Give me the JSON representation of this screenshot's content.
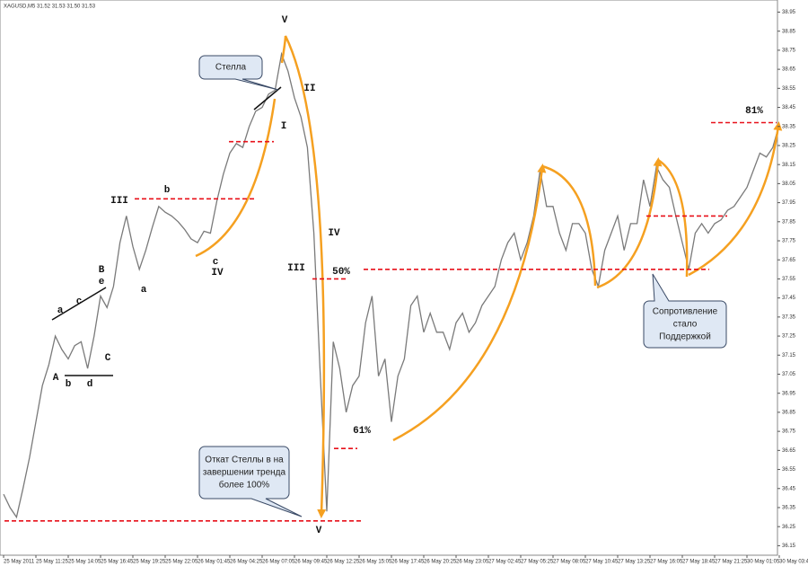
{
  "chart_data": {
    "type": "line",
    "title": "XAGUSD,M5  31.52 31.53 31.50 31.53",
    "categories": [
      "25 May 2011",
      null,
      null,
      null,
      null,
      "25 May 11:25",
      null,
      null,
      null,
      null,
      "25 May 14:05",
      null,
      null,
      null,
      null,
      "25 May 16:45",
      null,
      null,
      null,
      null,
      "25 May 19:25",
      null,
      null,
      null,
      null,
      "25 May 22:05",
      null,
      null,
      null,
      null,
      "26 May 01:45",
      null,
      null,
      null,
      null,
      "26 May 04:25",
      null,
      null,
      null,
      null,
      "26 May 07:05",
      null,
      null,
      null,
      null,
      "26 May 09:45",
      null,
      null,
      null,
      null,
      "26 May 12:25",
      null,
      null,
      null,
      null,
      "26 May 15:05",
      null,
      null,
      null,
      null,
      "26 May 17:45",
      null,
      null,
      null,
      null,
      "26 May 20:25",
      null,
      null,
      null,
      null,
      "26 May 23:05",
      null,
      null,
      null,
      null,
      "27 May 02:45",
      null,
      null,
      null,
      null,
      "27 May 05:25",
      null,
      null,
      null,
      null,
      "27 May 08:05",
      null,
      null,
      null,
      null,
      "27 May 10:45",
      null,
      null,
      null,
      null,
      "27 May 13:25",
      null,
      null,
      null,
      null,
      "27 May 16:05",
      null,
      null,
      null,
      null,
      "27 May 18:45",
      null,
      null,
      null,
      null,
      "27 May 21:25",
      null,
      null,
      null,
      null,
      "30 May 01:05",
      null,
      null,
      null,
      null,
      "30 May 03:45"
    ],
    "values": [
      36.42,
      36.35,
      36.3,
      36.45,
      36.61,
      36.8,
      36.99,
      37.1,
      37.25,
      37.18,
      37.13,
      37.2,
      37.22,
      37.08,
      37.25,
      37.46,
      37.4,
      37.51,
      37.74,
      37.88,
      37.72,
      37.6,
      37.7,
      37.82,
      37.93,
      37.9,
      37.88,
      37.85,
      37.81,
      37.76,
      37.74,
      37.8,
      37.79,
      37.96,
      38.1,
      38.21,
      38.26,
      38.24,
      38.35,
      38.43,
      38.45,
      38.52,
      38.54,
      38.73,
      38.64,
      38.5,
      38.4,
      38.24,
      37.79,
      37.04,
      36.33,
      37.22,
      37.08,
      36.85,
      36.99,
      37.04,
      37.32,
      37.46,
      37.04,
      37.13,
      36.8,
      37.04,
      37.13,
      37.41,
      37.46,
      37.27,
      37.37,
      37.27,
      37.27,
      37.18,
      37.32,
      37.37,
      37.27,
      37.32,
      37.41,
      37.46,
      37.51,
      37.65,
      37.74,
      37.79,
      37.65,
      37.74,
      37.88,
      38.12,
      37.93,
      37.93,
      37.79,
      37.7,
      37.84,
      37.84,
      37.79,
      37.6,
      37.51,
      37.7,
      37.79,
      37.88,
      37.7,
      37.84,
      37.84,
      38.07,
      37.93,
      38.14,
      38.07,
      38.03,
      37.88,
      37.74,
      37.6,
      37.79,
      37.84,
      37.79,
      37.84,
      37.86,
      37.91,
      37.93,
      37.98,
      38.03,
      38.12,
      38.21,
      38.19,
      38.24,
      38.36
    ],
    "color": "#7a7a7a",
    "ylim": [
      36.1,
      38.99
    ],
    "yticks": [
      36.15,
      36.25,
      36.35,
      36.45,
      36.55,
      36.65,
      36.75,
      36.85,
      36.95,
      37.05,
      37.15,
      37.25,
      37.35,
      37.45,
      37.55,
      37.65,
      37.75,
      37.85,
      37.95,
      38.05,
      38.15,
      38.25,
      38.35,
      38.45,
      38.55,
      38.65,
      38.75,
      38.85,
      38.95
    ],
    "levels": {
      "color": "#e8101a",
      "values": [
        38.27,
        37.97,
        37.55,
        37.6,
        36.66,
        36.28,
        37.88,
        38.37
      ]
    },
    "annotations": [
      "V",
      "II",
      "I",
      "III",
      "b",
      "c",
      "IV",
      "IV",
      "III",
      "50%",
      "61%",
      "81%",
      "V",
      "B",
      "e",
      "a",
      "c",
      "a",
      "A",
      "b",
      "d",
      "C"
    ],
    "callouts": [
      {
        "lines": [
          "Стелла"
        ]
      },
      {
        "lines": [
          "Откат Стеллы в на",
          "завершении тренда",
          "более 100%"
        ]
      },
      {
        "lines": [
          "Сопротивление",
          "стало",
          "Поддержкой"
        ]
      }
    ]
  }
}
